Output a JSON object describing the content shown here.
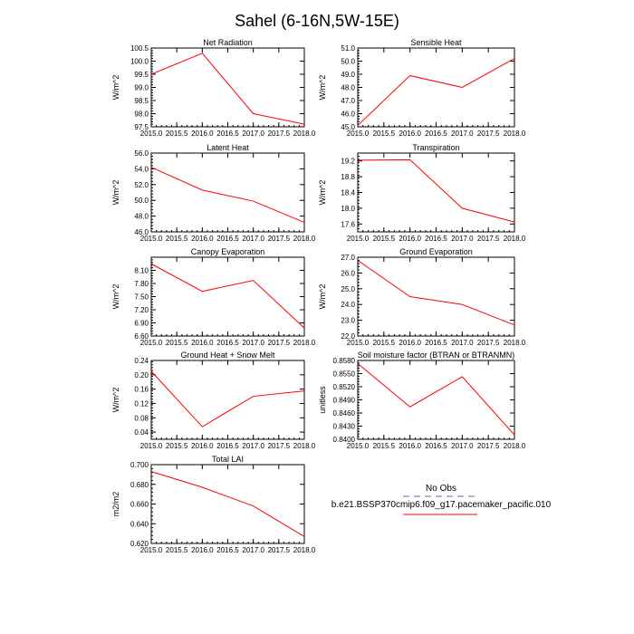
{
  "title": "Sahel (6-16N,5W-15E)",
  "line_color": "#ff0000",
  "obs_color": "#b0b0d8",
  "legend": {
    "obs_label": "No Obs",
    "model_label": "b.e21.BSSP370cmip6.f09_g17.pacemaker_pacific.010"
  },
  "chart_data": [
    {
      "type": "line",
      "title": "Net Radiation",
      "ylabel": "W/m^2",
      "x": [
        2015,
        2016,
        2017,
        2018
      ],
      "values": [
        99.5,
        100.3,
        98.0,
        97.6
      ],
      "xlim": [
        2015,
        2018
      ],
      "ylim": [
        97.5,
        100.5
      ],
      "xticks": [
        "2015.0",
        "2015.5",
        "2016.0",
        "2016.5",
        "2017.0",
        "2017.5",
        "2018.0"
      ],
      "yticks": [
        "97.5",
        "98.0",
        "98.5",
        "99.0",
        "99.5",
        "100.0",
        "100.5"
      ]
    },
    {
      "type": "line",
      "title": "Sensible Heat",
      "ylabel": "W/m^2",
      "x": [
        2015,
        2016,
        2017,
        2018
      ],
      "values": [
        45.1,
        48.9,
        48.0,
        50.2
      ],
      "xlim": [
        2015,
        2018
      ],
      "ylim": [
        45.0,
        51.0
      ],
      "xticks": [
        "2015.0",
        "2015.5",
        "2016.0",
        "2016.5",
        "2017.0",
        "2017.5",
        "2018.0"
      ],
      "yticks": [
        "45.0",
        "46.0",
        "47.0",
        "48.0",
        "49.0",
        "50.0",
        "51.0"
      ]
    },
    {
      "type": "line",
      "title": "Latent Heat",
      "ylabel": "W/m^2",
      "x": [
        2015,
        2016,
        2017,
        2018
      ],
      "values": [
        54.2,
        51.3,
        49.9,
        47.2
      ],
      "xlim": [
        2015,
        2018
      ],
      "ylim": [
        46.0,
        56.0
      ],
      "xticks": [
        "2015.0",
        "2015.5",
        "2016.0",
        "2016.5",
        "2017.0",
        "2017.5",
        "2018.0"
      ],
      "yticks": [
        "46.0",
        "48.0",
        "50.0",
        "52.0",
        "54.0",
        "56.0"
      ]
    },
    {
      "type": "line",
      "title": "Transpiration",
      "ylabel": "W/m^2",
      "x": [
        2015,
        2016,
        2017,
        2018
      ],
      "values": [
        19.22,
        19.23,
        18.0,
        17.65
      ],
      "xlim": [
        2015,
        2018
      ],
      "ylim": [
        17.4,
        19.4
      ],
      "xticks": [
        "2015.0",
        "2015.5",
        "2016.0",
        "2016.5",
        "2017.0",
        "2017.5",
        "2018.0"
      ],
      "yticks": [
        "17.6",
        "18.0",
        "18.4",
        "18.8",
        "19.2"
      ]
    },
    {
      "type": "line",
      "title": "Canopy Evaporation",
      "ylabel": "W/m^2",
      "x": [
        2015,
        2016,
        2017,
        2018
      ],
      "values": [
        8.25,
        7.62,
        7.87,
        6.78
      ],
      "xlim": [
        2015,
        2018
      ],
      "ylim": [
        6.6,
        8.4
      ],
      "xticks": [
        "2015.0",
        "2015.5",
        "2016.0",
        "2016.5",
        "2017.0",
        "2017.5",
        "2018.0"
      ],
      "yticks": [
        "6.60",
        "6.90",
        "7.20",
        "7.50",
        "7.80",
        "8.10"
      ]
    },
    {
      "type": "line",
      "title": "Ground Evaporation",
      "ylabel": "W/m^2",
      "x": [
        2015,
        2016,
        2017,
        2018
      ],
      "values": [
        26.8,
        24.5,
        24.0,
        22.7
      ],
      "xlim": [
        2015,
        2018
      ],
      "ylim": [
        22.0,
        27.0
      ],
      "xticks": [
        "2015.0",
        "2015.5",
        "2016.0",
        "2016.5",
        "2017.0",
        "2017.5",
        "2018.0"
      ],
      "yticks": [
        "22.0",
        "23.0",
        "24.0",
        "25.0",
        "26.0",
        "27.0"
      ]
    },
    {
      "type": "line",
      "title": "Ground Heat + Snow Melt",
      "ylabel": "W/m^2",
      "x": [
        2015,
        2016,
        2017,
        2018
      ],
      "values": [
        0.21,
        0.055,
        0.14,
        0.155
      ],
      "xlim": [
        2015,
        2018
      ],
      "ylim": [
        0.02,
        0.24
      ],
      "xticks": [
        "2015.0",
        "2015.5",
        "2016.0",
        "2016.5",
        "2017.0",
        "2017.5",
        "2018.0"
      ],
      "yticks": [
        "0.04",
        "0.08",
        "0.12",
        "0.16",
        "0.20",
        "0.24"
      ]
    },
    {
      "type": "line",
      "title": "Soil moisture factor (BTRAN or BTRANMN)",
      "ylabel": "unitless",
      "x": [
        2015,
        2016,
        2017,
        2018
      ],
      "values": [
        0.8573,
        0.8474,
        0.8543,
        0.841
      ],
      "xlim": [
        2015,
        2018
      ],
      "ylim": [
        0.84,
        0.858
      ],
      "xticks": [
        "2015.0",
        "2015.5",
        "2016.0",
        "2016.5",
        "2017.0",
        "2017.5",
        "2018.0"
      ],
      "yticks": [
        "0.8400",
        "0.8430",
        "0.8460",
        "0.8490",
        "0.8520",
        "0.8550",
        "0.8580"
      ]
    },
    {
      "type": "line",
      "title": "Total LAI",
      "ylabel": "m2/m2",
      "x": [
        2015,
        2016,
        2017,
        2018
      ],
      "values": [
        0.693,
        0.677,
        0.658,
        0.627
      ],
      "xlim": [
        2015,
        2018
      ],
      "ylim": [
        0.62,
        0.7
      ],
      "xticks": [
        "2015.0",
        "2015.5",
        "2016.0",
        "2016.5",
        "2017.0",
        "2017.5",
        "2018.0"
      ],
      "yticks": [
        "0.620",
        "0.640",
        "0.660",
        "0.680",
        "0.700"
      ]
    }
  ]
}
